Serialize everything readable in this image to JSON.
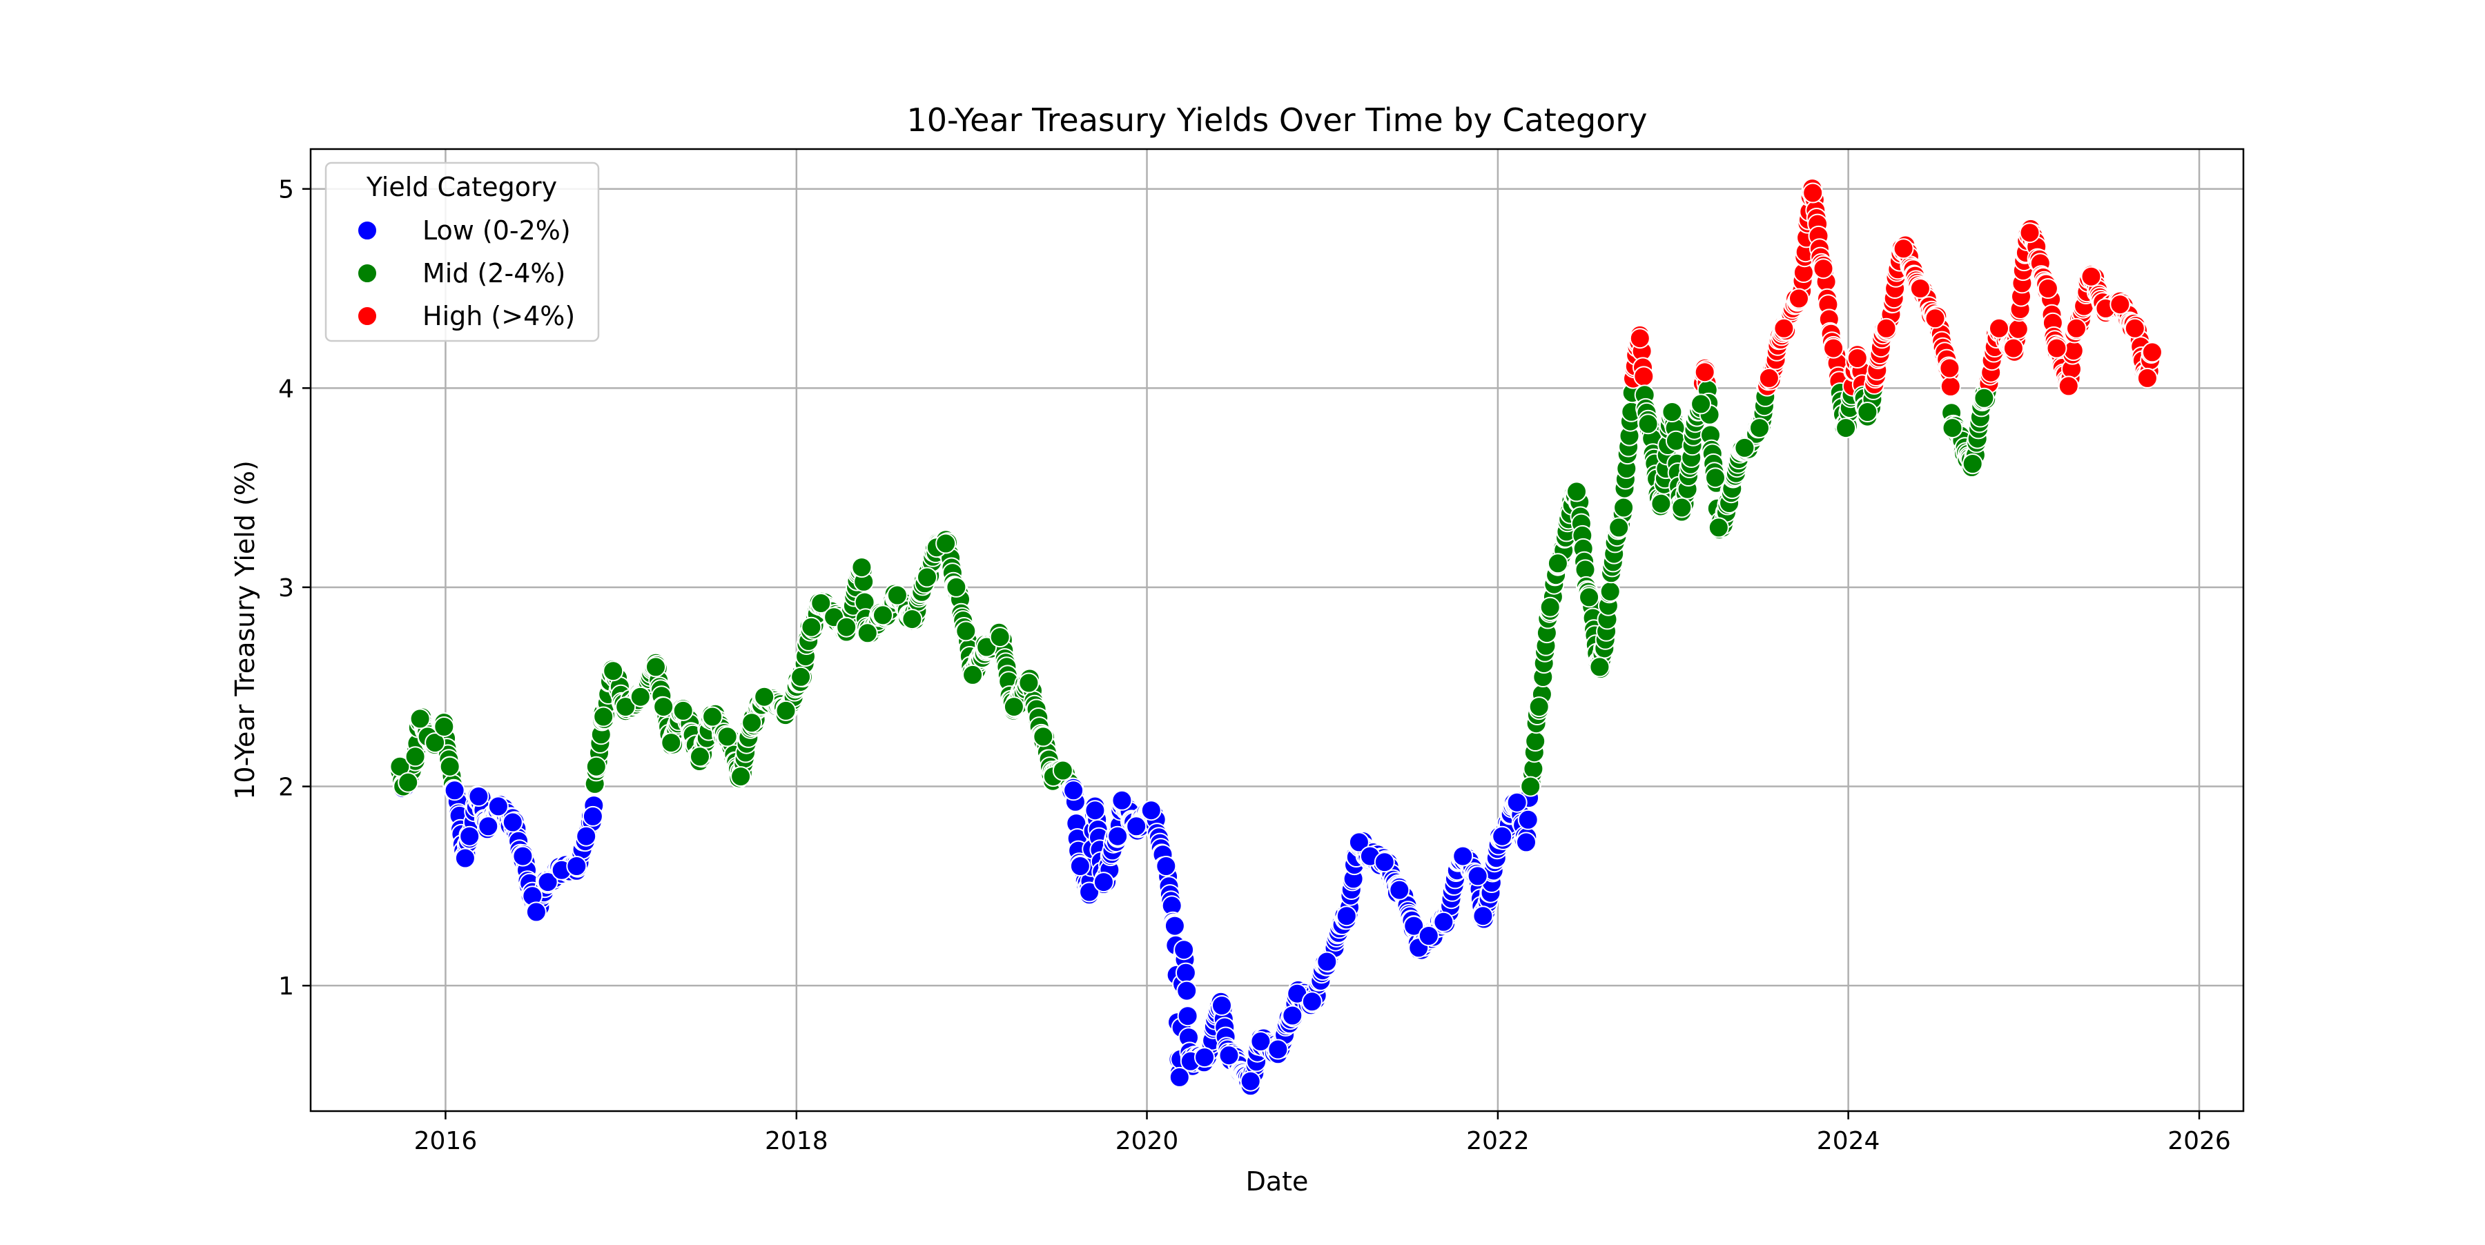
{
  "chart_data": {
    "type": "scatter",
    "title": "10-Year Treasury Yields Over Time by Category",
    "xlabel": "Date",
    "ylabel": "10-Year Treasury Yield (%)",
    "x_type": "date",
    "xlim": [
      "2015-03-26",
      "2026-04-03"
    ],
    "ylim": [
      0.37,
      5.2
    ],
    "x_ticks": [
      "2016",
      "2018",
      "2020",
      "2022",
      "2024",
      "2026"
    ],
    "y_ticks": [
      1,
      2,
      3,
      4,
      5
    ],
    "grid": true,
    "legend": {
      "title": "Yield Category",
      "placement": "top-left",
      "entries": [
        {
          "label": "Low (0-2%)",
          "color": "#0000ff"
        },
        {
          "label": "Mid (2-4%)",
          "color": "#008000"
        },
        {
          "label": "High (>4%)",
          "color": "#ff0000"
        }
      ]
    },
    "categories": [
      {
        "label": "Low (0-2%)",
        "min": 0,
        "max": 2,
        "color": "#0000ff"
      },
      {
        "label": "Mid (2-4%)",
        "min": 2,
        "max": 4,
        "color": "#008000"
      },
      {
        "label": "High (>4%)",
        "min": 4,
        "max": 100,
        "color": "#ff0000"
      }
    ],
    "series_points": [
      [
        "2015-09-28",
        2.1
      ],
      [
        "2015-10-05",
        2.0
      ],
      [
        "2015-10-15",
        2.02
      ],
      [
        "2015-10-30",
        2.15
      ],
      [
        "2015-11-09",
        2.34
      ],
      [
        "2015-11-25",
        2.25
      ],
      [
        "2015-12-10",
        2.22
      ],
      [
        "2015-12-29",
        2.3
      ],
      [
        "2016-01-10",
        2.1
      ],
      [
        "2016-01-20",
        1.98
      ],
      [
        "2016-02-11",
        1.64
      ],
      [
        "2016-02-20",
        1.75
      ],
      [
        "2016-03-10",
        1.95
      ],
      [
        "2016-03-30",
        1.8
      ],
      [
        "2016-04-20",
        1.9
      ],
      [
        "2016-05-20",
        1.82
      ],
      [
        "2016-06-10",
        1.65
      ],
      [
        "2016-06-30",
        1.45
      ],
      [
        "2016-07-08",
        1.37
      ],
      [
        "2016-08-01",
        1.52
      ],
      [
        "2016-08-30",
        1.58
      ],
      [
        "2016-09-30",
        1.6
      ],
      [
        "2016-10-20",
        1.75
      ],
      [
        "2016-11-03",
        1.85
      ],
      [
        "2016-11-10",
        2.1
      ],
      [
        "2016-11-25",
        2.35
      ],
      [
        "2016-12-15",
        2.58
      ],
      [
        "2017-01-10",
        2.4
      ],
      [
        "2017-02-10",
        2.45
      ],
      [
        "2017-03-14",
        2.6
      ],
      [
        "2017-03-30",
        2.4
      ],
      [
        "2017-04-15",
        2.22
      ],
      [
        "2017-05-10",
        2.38
      ],
      [
        "2017-06-14",
        2.15
      ],
      [
        "2017-07-10",
        2.35
      ],
      [
        "2017-08-10",
        2.25
      ],
      [
        "2017-09-07",
        2.05
      ],
      [
        "2017-09-30",
        2.32
      ],
      [
        "2017-10-26",
        2.45
      ],
      [
        "2017-12-10",
        2.38
      ],
      [
        "2018-01-10",
        2.55
      ],
      [
        "2018-02-01",
        2.8
      ],
      [
        "2018-02-21",
        2.92
      ],
      [
        "2018-03-20",
        2.85
      ],
      [
        "2018-04-15",
        2.8
      ],
      [
        "2018-05-17",
        3.1
      ],
      [
        "2018-05-29",
        2.77
      ],
      [
        "2018-06-30",
        2.86
      ],
      [
        "2018-07-30",
        2.96
      ],
      [
        "2018-08-30",
        2.84
      ],
      [
        "2018-09-30",
        3.05
      ],
      [
        "2018-10-20",
        3.2
      ],
      [
        "2018-11-08",
        3.22
      ],
      [
        "2018-11-30",
        3.0
      ],
      [
        "2018-12-20",
        2.78
      ],
      [
        "2019-01-03",
        2.56
      ],
      [
        "2019-02-01",
        2.7
      ],
      [
        "2019-03-01",
        2.75
      ],
      [
        "2019-03-30",
        2.4
      ],
      [
        "2019-04-30",
        2.52
      ],
      [
        "2019-05-30",
        2.25
      ],
      [
        "2019-06-20",
        2.05
      ],
      [
        "2019-07-10",
        2.08
      ],
      [
        "2019-08-01",
        1.98
      ],
      [
        "2019-08-15",
        1.6
      ],
      [
        "2019-09-03",
        1.47
      ],
      [
        "2019-09-15",
        1.88
      ],
      [
        "2019-10-03",
        1.52
      ],
      [
        "2019-11-01",
        1.75
      ],
      [
        "2019-11-10",
        1.93
      ],
      [
        "2019-12-10",
        1.8
      ],
      [
        "2020-01-10",
        1.88
      ],
      [
        "2020-02-10",
        1.6
      ],
      [
        "2020-02-28",
        1.3
      ],
      [
        "2020-03-09",
        0.54
      ],
      [
        "2020-03-18",
        1.18
      ],
      [
        "2020-04-01",
        0.62
      ],
      [
        "2020-04-30",
        0.64
      ],
      [
        "2020-06-05",
        0.9
      ],
      [
        "2020-06-20",
        0.65
      ],
      [
        "2020-08-04",
        0.52
      ],
      [
        "2020-08-25",
        0.72
      ],
      [
        "2020-09-30",
        0.68
      ],
      [
        "2020-10-30",
        0.85
      ],
      [
        "2020-11-09",
        0.96
      ],
      [
        "2020-12-10",
        0.92
      ],
      [
        "2021-01-10",
        1.12
      ],
      [
        "2021-02-20",
        1.35
      ],
      [
        "2021-03-18",
        1.72
      ],
      [
        "2021-04-10",
        1.65
      ],
      [
        "2021-05-10",
        1.62
      ],
      [
        "2021-06-10",
        1.48
      ],
      [
        "2021-07-10",
        1.3
      ],
      [
        "2021-07-20",
        1.19
      ],
      [
        "2021-08-10",
        1.25
      ],
      [
        "2021-09-10",
        1.32
      ],
      [
        "2021-10-20",
        1.65
      ],
      [
        "2021-11-20",
        1.55
      ],
      [
        "2021-12-01",
        1.35
      ],
      [
        "2022-01-10",
        1.75
      ],
      [
        "2022-02-10",
        1.92
      ],
      [
        "2022-03-01",
        1.72
      ],
      [
        "2022-03-10",
        2.0
      ],
      [
        "2022-03-28",
        2.4
      ],
      [
        "2022-04-20",
        2.9
      ],
      [
        "2022-05-06",
        3.12
      ],
      [
        "2022-06-14",
        3.48
      ],
      [
        "2022-07-10",
        2.95
      ],
      [
        "2022-08-01",
        2.6
      ],
      [
        "2022-09-10",
        3.3
      ],
      [
        "2022-10-24",
        4.25
      ],
      [
        "2022-11-10",
        3.82
      ],
      [
        "2022-12-07",
        3.42
      ],
      [
        "2022-12-30",
        3.88
      ],
      [
        "2023-01-19",
        3.4
      ],
      [
        "2023-02-28",
        3.92
      ],
      [
        "2023-03-08",
        4.08
      ],
      [
        "2023-03-30",
        3.55
      ],
      [
        "2023-04-06",
        3.3
      ],
      [
        "2023-05-30",
        3.7
      ],
      [
        "2023-06-30",
        3.8
      ],
      [
        "2023-07-20",
        4.05
      ],
      [
        "2023-08-20",
        4.3
      ],
      [
        "2023-09-20",
        4.45
      ],
      [
        "2023-10-19",
        4.98
      ],
      [
        "2023-11-10",
        4.6
      ],
      [
        "2023-12-01",
        4.2
      ],
      [
        "2023-12-27",
        3.8
      ],
      [
        "2024-01-20",
        4.15
      ],
      [
        "2024-02-10",
        3.88
      ],
      [
        "2024-03-20",
        4.3
      ],
      [
        "2024-04-25",
        4.7
      ],
      [
        "2024-05-30",
        4.5
      ],
      [
        "2024-06-30",
        4.35
      ],
      [
        "2024-07-30",
        4.1
      ],
      [
        "2024-08-05",
        3.8
      ],
      [
        "2024-09-16",
        3.62
      ],
      [
        "2024-10-10",
        3.95
      ],
      [
        "2024-11-10",
        4.3
      ],
      [
        "2024-12-10",
        4.2
      ],
      [
        "2025-01-13",
        4.78
      ],
      [
        "2025-02-20",
        4.5
      ],
      [
        "2025-03-10",
        4.2
      ],
      [
        "2025-04-04",
        4.01
      ],
      [
        "2025-04-20",
        4.3
      ],
      [
        "2025-05-21",
        4.56
      ],
      [
        "2025-06-20",
        4.4
      ],
      [
        "2025-07-20",
        4.42
      ],
      [
        "2025-08-20",
        4.3
      ],
      [
        "2025-09-15",
        4.05
      ],
      [
        "2025-09-25",
        4.18
      ]
    ]
  }
}
